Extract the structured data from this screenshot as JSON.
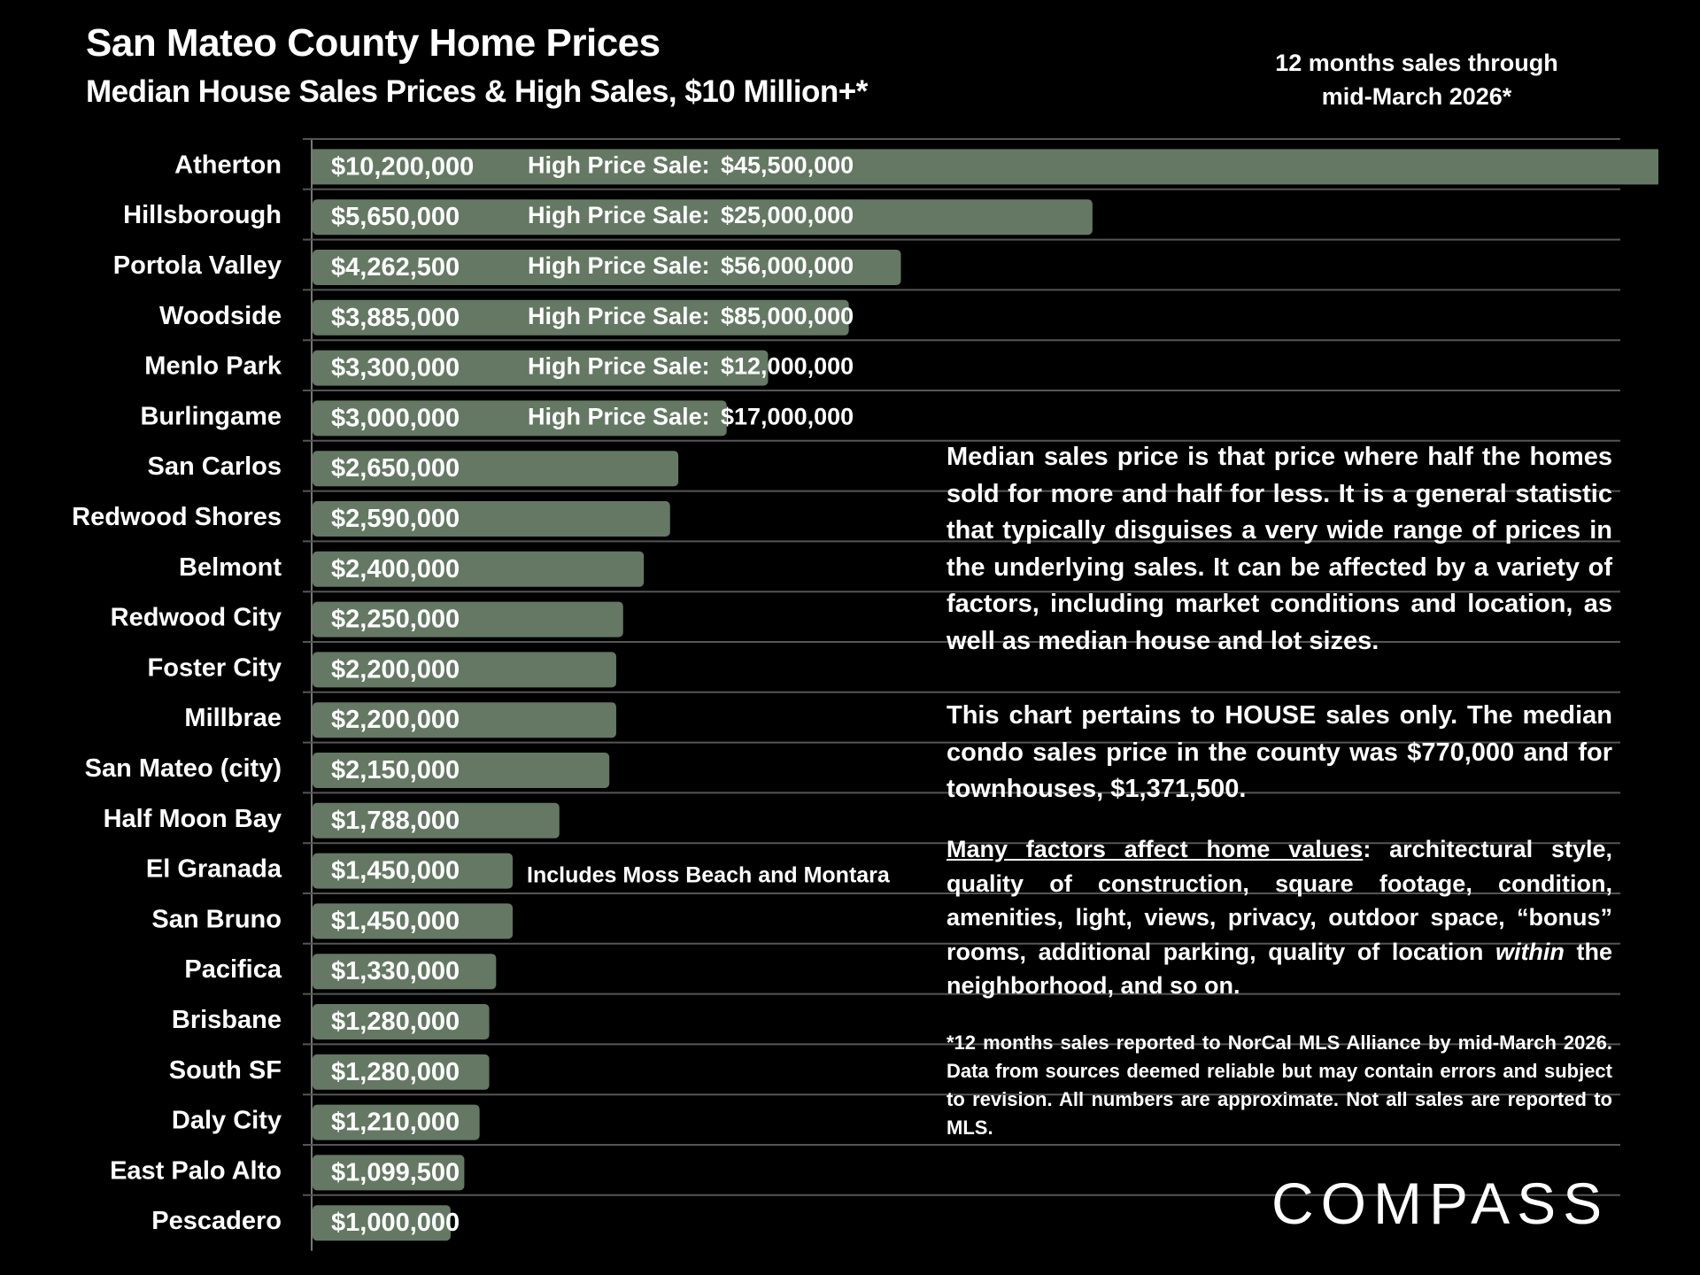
{
  "header": {
    "title": "San Mateo County Home Prices",
    "subtitle": "Median House Sales Prices & High Sales, $10 Million+*",
    "period_line1": "12 months sales through",
    "period_line2": "mid-March 2026*"
  },
  "chart_data": {
    "type": "bar",
    "orientation": "horizontal",
    "title": "Median House Sales Prices & High Sales, $10 Million+*",
    "xlabel": "",
    "ylabel": "",
    "xlim": [
      0,
      9750000
    ],
    "grid": true,
    "bar_color": "#647864",
    "categories": [
      "Atherton",
      "Hillsborough",
      "Portola Valley",
      "Woodside",
      "Menlo Park",
      "Burlingame",
      "San Carlos",
      "Redwood Shores",
      "Belmont",
      "Redwood City",
      "Foster City",
      "Millbrae",
      "San Mateo (city)",
      "Half Moon Bay",
      "El Granada",
      "San Bruno",
      "Pacifica",
      "Brisbane",
      "South SF",
      "Daly City",
      "East Palo Alto",
      "Pescadero"
    ],
    "values": [
      10200000,
      5650000,
      4262500,
      3885000,
      3300000,
      3000000,
      2650000,
      2590000,
      2400000,
      2250000,
      2200000,
      2200000,
      2150000,
      1788000,
      1450000,
      1450000,
      1330000,
      1280000,
      1280000,
      1210000,
      1099500,
      1000000
    ],
    "value_labels": [
      "$10,200,000",
      "$5,650,000",
      "$4,262,500",
      "$3,885,000",
      "$3,300,000",
      "$3,000,000",
      "$2,650,000",
      "$2,590,000",
      "$2,400,000",
      "$2,250,000",
      "$2,200,000",
      "$2,200,000",
      "$2,150,000",
      "$1,788,000",
      "$1,450,000",
      "$1,450,000",
      "$1,330,000",
      "$1,280,000",
      "$1,280,000",
      "$1,210,000",
      "$1,099,500",
      "$1,000,000"
    ],
    "high_sales": [
      {
        "category": "Atherton",
        "label": "High Price Sale:",
        "value": 45500000,
        "value_label": "$45,500,000"
      },
      {
        "category": "Hillsborough",
        "label": "High Price Sale:",
        "value": 25000000,
        "value_label": "$25,000,000"
      },
      {
        "category": "Portola Valley",
        "label": "High Price Sale:",
        "value": 56000000,
        "value_label": "$56,000,000"
      },
      {
        "category": "Woodside",
        "label": "High Price Sale:",
        "value": 85000000,
        "value_label": "$85,000,000"
      },
      {
        "category": "Menlo Park",
        "label": "High Price Sale:",
        "value": 12000000,
        "value_label": "$12,000,000"
      },
      {
        "category": "Burlingame",
        "label": "High Price Sale:",
        "value": 17000000,
        "value_label": "$17,000,000"
      }
    ],
    "annotations": [
      {
        "category": "El Granada",
        "text": "Includes Moss Beach and Montara"
      }
    ]
  },
  "notes": {
    "p1": "Median sales price is that price where half the homes sold for more and half for less. It is a general statistic that typically disguises a very wide range of prices in the underlying sales. It can be affected by a variety of factors, including market conditions and location, as well as median house and lot sizes.",
    "p2": "This chart pertains to HOUSE sales only. The median condo sales price in the county was $770,000 and for townhouses, $1,371,500.",
    "p3_lead": "Many factors affect home values",
    "p3_a": ": architectural style, quality of construction, square footage, condition, amenities, light, views, privacy, outdoor space, “bonus” rooms, additional parking, quality of location ",
    "p3_em": "within",
    "p3_b": " the neighborhood, and so on.",
    "p4": "*12 months sales reported to NorCal MLS Alliance by mid-March 2026. Data from sources deemed reliable but may contain errors and subject to revision. All numbers are approximate. Not all sales are reported to MLS."
  },
  "brand": {
    "logo_text": "COMPASS"
  }
}
